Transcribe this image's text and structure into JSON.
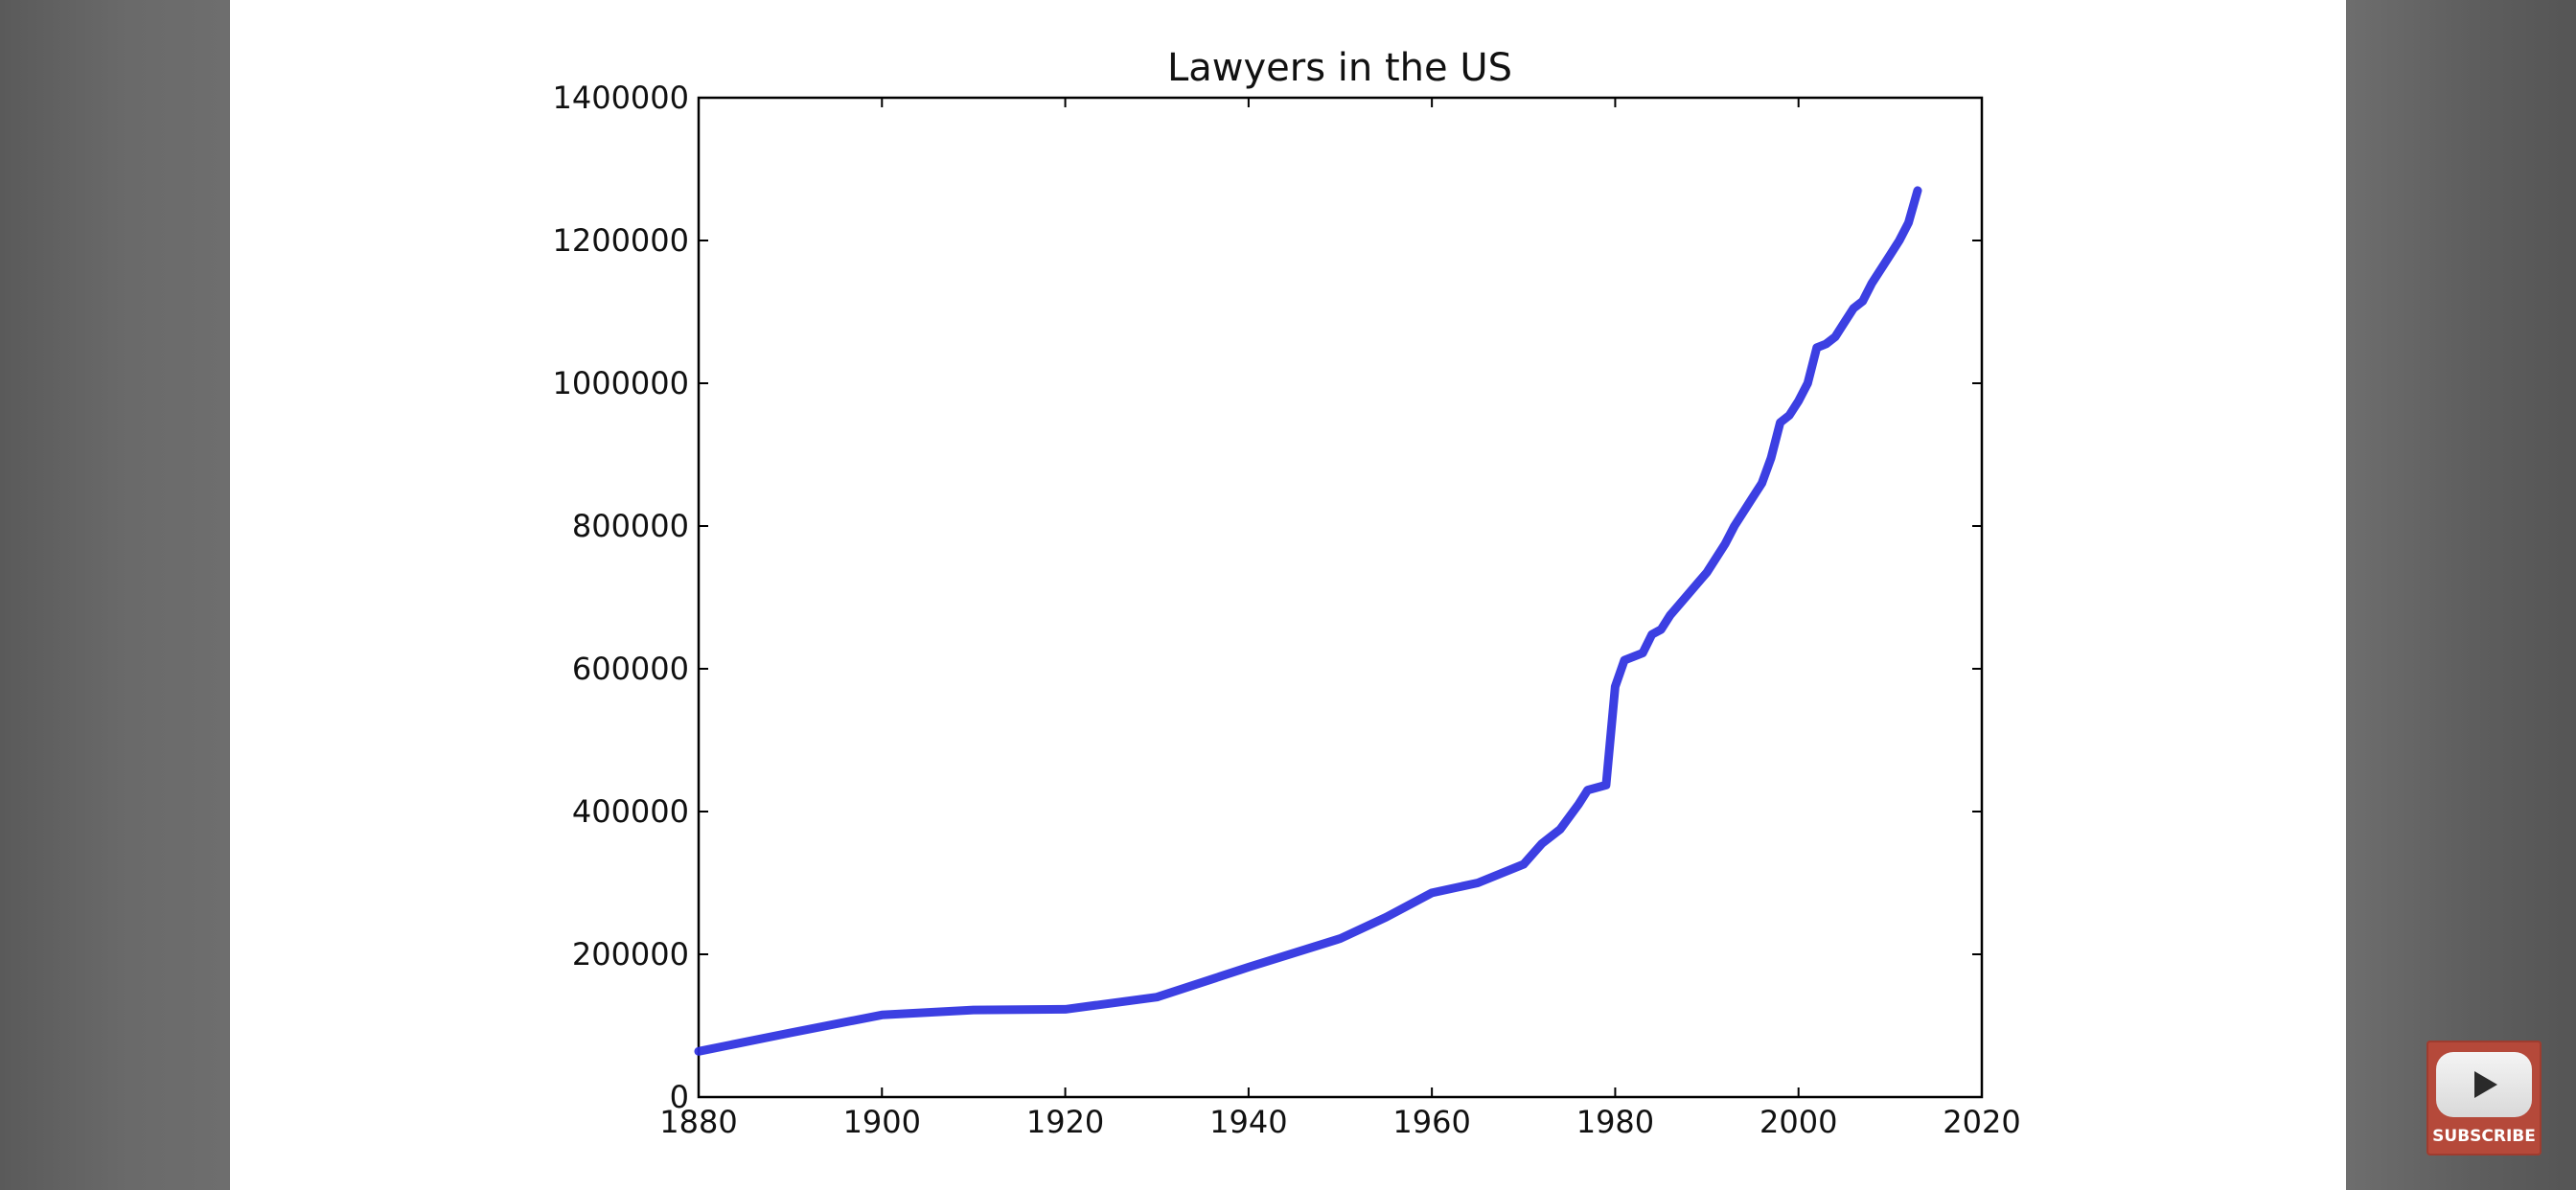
{
  "chart_data": {
    "type": "line",
    "title": "Lawyers in the US",
    "xlabel": "",
    "ylabel": "",
    "xlim": [
      1880,
      2020
    ],
    "ylim": [
      0,
      1400000
    ],
    "x_ticks": [
      "1880",
      "1900",
      "1920",
      "1940",
      "1960",
      "1980",
      "2000",
      "2020"
    ],
    "y_ticks": [
      "0",
      "200000",
      "400000",
      "600000",
      "800000",
      "1000000",
      "1200000",
      "1400000"
    ],
    "grid": false,
    "legend": "none",
    "series": [
      {
        "color": "#2b2fe0",
        "x": [
          1880,
          1890,
          1900,
          1910,
          1920,
          1930,
          1940,
          1950,
          1955,
          1960,
          1965,
          1970,
          1972,
          1974,
          1976,
          1977,
          1979,
          1980,
          1981,
          1983,
          1984,
          1985,
          1986,
          1988,
          1989,
          1990,
          1992,
          1993,
          1995,
          1996,
          1997,
          1998,
          1999,
          2000,
          2001,
          2002,
          2003,
          2004,
          2005,
          2006,
          2007,
          2008,
          2009,
          2010,
          2011,
          2012,
          2013
        ],
        "y": [
          64000,
          90000,
          115000,
          122000,
          123000,
          140000,
          182000,
          222000,
          252000,
          286000,
          300000,
          326000,
          355000,
          375000,
          410000,
          430000,
          437000,
          575000,
          612000,
          622000,
          648000,
          655000,
          675000,
          705000,
          720000,
          735000,
          775000,
          800000,
          840000,
          860000,
          895000,
          945000,
          955000,
          975000,
          1000000,
          1050000,
          1055000,
          1065000,
          1085000,
          1105000,
          1115000,
          1140000,
          1160000,
          1180000,
          1200000,
          1225000,
          1270000
        ]
      }
    ]
  },
  "subscribe_label": "SUBSCRIBE"
}
